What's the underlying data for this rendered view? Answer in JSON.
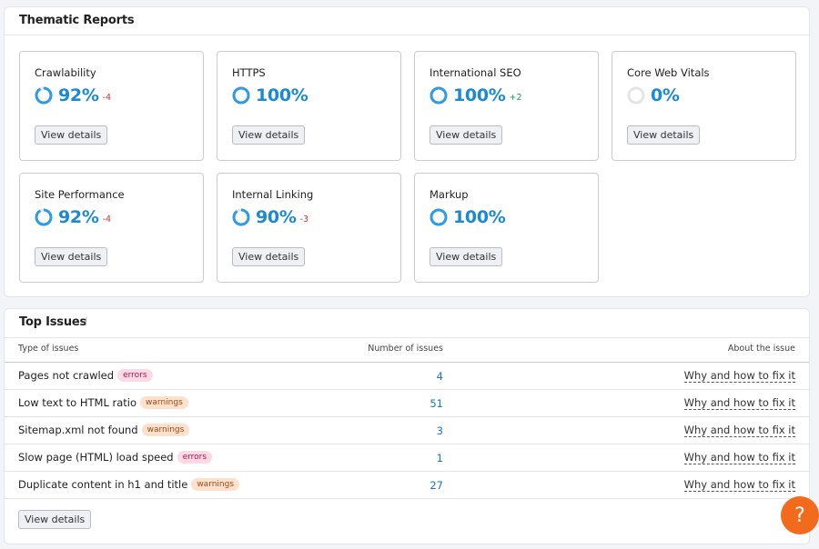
{
  "thematic_reports": {
    "title": "Thematic Reports",
    "cards": [
      {
        "name": "Crawlability",
        "score": {
          "value": 92,
          "label": "92%"
        },
        "change": "-4",
        "button": "View details"
      },
      {
        "name": "HTTPS",
        "score": {
          "value": 100,
          "label": "100%"
        },
        "button": "View details"
      },
      {
        "name": "International SEO",
        "score": {
          "value": 100,
          "label": "100%"
        },
        "change": "+2",
        "button": "View details"
      },
      {
        "name": "Core Web Vitals",
        "score": {
          "value": 0,
          "label": "0%"
        },
        "button": "View details"
      },
      {
        "name": "Site Performance",
        "score": {
          "value": 92,
          "label": "92%"
        },
        "change": "-4",
        "button": "View details"
      },
      {
        "name": "Internal Linking",
        "score": {
          "value": 90,
          "label": "90%"
        },
        "change": "-3",
        "button": "View details"
      },
      {
        "name": "Markup",
        "score": {
          "value": 100,
          "label": "100%"
        },
        "button": "View details"
      }
    ]
  },
  "top_issues": {
    "title": "Top Issues",
    "columns": [
      "Type of issues",
      "Number of issues",
      "About the issue"
    ],
    "rows": [
      {
        "issue": "Pages not crawled",
        "tag": "errors",
        "count": 4,
        "link": "Why and how to fix it"
      },
      {
        "issue": "Low text to HTML ratio",
        "tag": "warnings",
        "count": 51,
        "link": "Why and how to fix it"
      },
      {
        "issue": "Sitemap.xml not found",
        "tag": "warnings",
        "count": 3,
        "link": "Why and how to fix it"
      },
      {
        "issue": "Slow page (HTML) load speed",
        "tag": "errors",
        "count": 1,
        "link": "Why and how to fix it"
      },
      {
        "issue": "Duplicate content in h1 and title",
        "tag": "warnings",
        "count": 27,
        "link": "Why and how to fix it"
      }
    ],
    "button": "View details"
  },
  "help_button": "?"
}
